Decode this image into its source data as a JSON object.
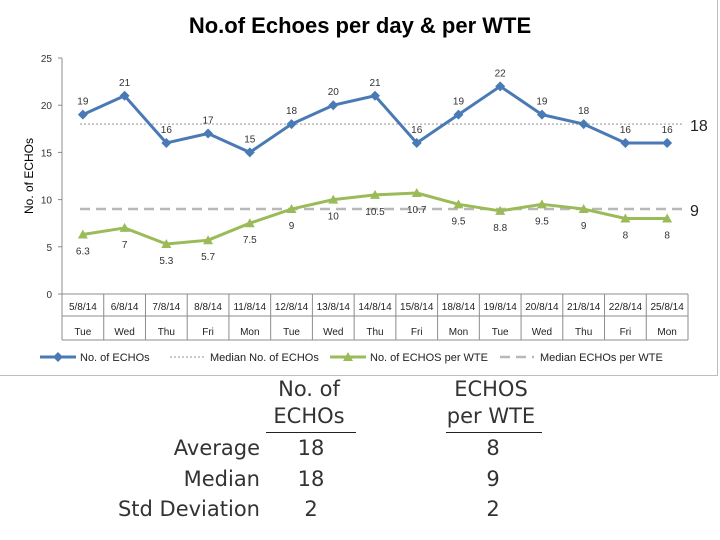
{
  "chart_data": {
    "type": "line",
    "title": "No.of Echoes per day & per WTE",
    "ylabel": "No. of ECHOs",
    "xlabel": "",
    "ylim": [
      0,
      25
    ],
    "yticks": [
      "0",
      "5",
      "10",
      "15",
      "20",
      "25"
    ],
    "categories": [
      "5/8/14",
      "6/8/14",
      "7/8/14",
      "8/8/14",
      "11/8/14",
      "12/8/14",
      "13/8/14",
      "14/8/14",
      "15/8/14",
      "18/8/14",
      "19/8/14",
      "20/8/14",
      "21/8/14",
      "22/8/14",
      "25/8/14"
    ],
    "days": [
      "Tue",
      "Wed",
      "Thu",
      "Fri",
      "Mon",
      "Tue",
      "Wed",
      "Thu",
      "Fri",
      "Mon",
      "Tue",
      "Wed",
      "Thu",
      "Fri",
      "Mon"
    ],
    "grid": false,
    "legend_position": "bottom",
    "series": [
      {
        "name": "No. of ECHOs",
        "type": "line",
        "color": "#4a7ab5",
        "values": [
          19,
          21,
          16,
          17,
          15,
          18,
          20,
          21,
          16,
          19,
          22,
          19,
          18,
          16,
          16
        ],
        "labels": [
          "19",
          "21",
          "16",
          "17",
          "15",
          "18",
          "20",
          "21",
          "16",
          "19",
          "22",
          "19",
          "18",
          "16",
          "16"
        ]
      },
      {
        "name": "Median No. of ECHOs",
        "type": "median",
        "color": "#b8b8b8",
        "value": 18,
        "label": "18"
      },
      {
        "name": "No. of ECHOS per WTE",
        "type": "line",
        "color": "#9bbb59",
        "values": [
          6.3,
          7,
          5.3,
          5.7,
          7.5,
          9,
          10,
          10.5,
          10.7,
          9.5,
          8.8,
          9.5,
          9,
          8,
          8
        ],
        "labels": [
          "6.3",
          "7",
          "5.3",
          "5.7",
          "7.5",
          "9",
          "10",
          "10.5",
          "10.7",
          "9.5",
          "8.8",
          "9.5",
          "9",
          "8",
          "8"
        ]
      },
      {
        "name": "Median ECHOs per WTE",
        "type": "median",
        "color": "#b8b8b8",
        "value": 9,
        "label": "9"
      }
    ]
  },
  "stats": {
    "col1_header": [
      "No. of",
      "ECHOs"
    ],
    "col2_header": [
      "ECHOS",
      "per WTE"
    ],
    "rows": [
      {
        "label": "Average",
        "v1": "18",
        "v2": "8"
      },
      {
        "label": "Median",
        "v1": "18",
        "v2": "9"
      },
      {
        "label": "Std Deviation",
        "v1": "2",
        "v2": "2"
      }
    ]
  }
}
